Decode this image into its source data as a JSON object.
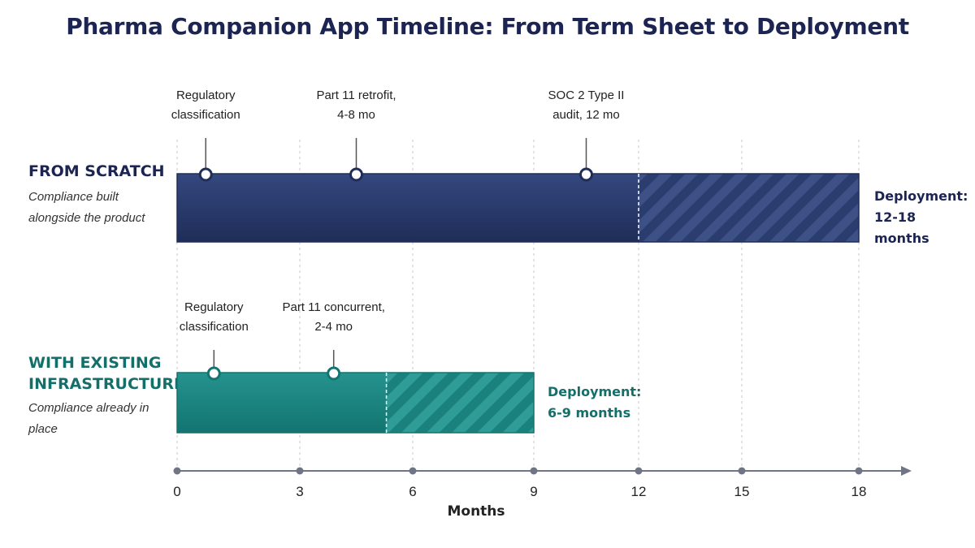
{
  "title": "Pharma Companion App Timeline: From Term Sheet to Deployment",
  "colors": {
    "scratch": "#2b3c6e",
    "scratch_dark": "#1f2d58",
    "existing": "#1f8a86",
    "existing_dark": "#137470",
    "grid": "#c8c8c8",
    "axis": "#6f7585",
    "text": "#222222"
  },
  "rows": {
    "scratch": {
      "label": "FROM SCRATCH",
      "subtitle": "Compliance built alongside the product",
      "deployment_label": "Deployment:",
      "deployment_value": "12-18 months"
    },
    "existing": {
      "label_line1": "WITH EXISTING",
      "label_line2": "INFRASTRUCTURE",
      "subtitle": "Compliance already in place",
      "deployment_label": "Deployment:",
      "deployment_value": "6-9 months"
    }
  },
  "chart_data": {
    "type": "gantt",
    "xlabel": "Months",
    "xlim": [
      0,
      18
    ],
    "xticks": [
      0,
      3,
      6,
      9,
      12,
      15,
      18
    ],
    "tick_labels": [
      "0",
      "3",
      "6",
      "9",
      "12",
      "15",
      "18"
    ],
    "grid": true,
    "tracks": [
      {
        "id": "scratch",
        "solid": [
          0,
          12
        ],
        "hatched": [
          12,
          18
        ],
        "milestones": [
          {
            "x": 0.7,
            "label_lines": [
              "Regulatory",
              "classification"
            ]
          },
          {
            "x": 4.5,
            "label_lines": [
              "Part 11 retrofit,",
              "4-8 mo"
            ]
          },
          {
            "x": 10.5,
            "label_lines": [
              "SOC 2 Type II",
              "audit, 12 mo"
            ]
          }
        ]
      },
      {
        "id": "existing",
        "solid": [
          0,
          5.3
        ],
        "hatched": [
          5.3,
          9
        ],
        "milestones": [
          {
            "x": 0.9,
            "label_lines": [
              "Regulatory",
              "classification"
            ]
          },
          {
            "x": 3.9,
            "label_lines": [
              "Part 11 concurrent,",
              "2-4 mo"
            ]
          }
        ]
      }
    ]
  }
}
